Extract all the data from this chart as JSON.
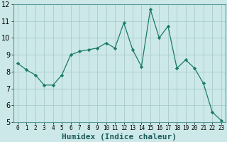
{
  "x": [
    0,
    1,
    2,
    3,
    4,
    5,
    6,
    7,
    8,
    9,
    10,
    11,
    12,
    13,
    14,
    15,
    16,
    17,
    18,
    19,
    20,
    21,
    22,
    23
  ],
  "y": [
    8.5,
    8.1,
    7.8,
    7.2,
    7.2,
    7.8,
    9.0,
    9.2,
    9.3,
    9.4,
    9.7,
    9.4,
    10.9,
    9.3,
    8.3,
    11.7,
    10.0,
    10.7,
    8.2,
    8.7,
    8.2,
    7.3,
    5.6,
    5.1
  ],
  "xlabel": "Humidex (Indice chaleur)",
  "ylim": [
    5,
    12
  ],
  "xlim": [
    -0.5,
    23.5
  ],
  "yticks": [
    5,
    6,
    7,
    8,
    9,
    10,
    11,
    12
  ],
  "xticks": [
    0,
    1,
    2,
    3,
    4,
    5,
    6,
    7,
    8,
    9,
    10,
    11,
    12,
    13,
    14,
    15,
    16,
    17,
    18,
    19,
    20,
    21,
    22,
    23
  ],
  "line_color": "#1a7a6a",
  "marker": "D",
  "marker_size": 2.2,
  "bg_color": "#cce8e8",
  "grid_color": "#aacccc",
  "xlabel_fontsize": 8,
  "xtick_fontsize": 5.5,
  "ytick_fontsize": 7
}
